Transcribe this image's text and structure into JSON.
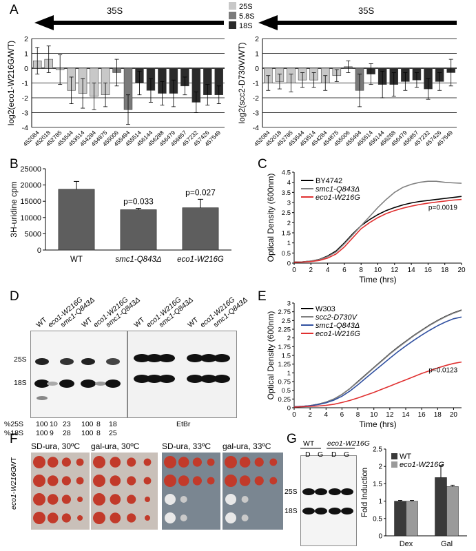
{
  "panel_letters": {
    "a": "A",
    "b": "B",
    "c": "C",
    "d": "D",
    "e": "E",
    "f": "F",
    "g": "G"
  },
  "panel_a": {
    "arrow_label_left": "35S",
    "arrow_label_right": "35S",
    "legend": [
      {
        "label": "25S",
        "color": "#c8c8c8"
      },
      {
        "label": "5.8S",
        "color": "#7a7a7a"
      },
      {
        "label": "18S",
        "color": "#2a2a2a"
      }
    ]
  },
  "panel_d": {
    "lanes": [
      "WT",
      "eco1-W216G",
      "smc1-Q843Δ",
      "WT",
      "eco1-W216G",
      "smc1-Q843Δ",
      "WT",
      "eco1-W216G",
      "smc1-Q843Δ",
      "WT",
      "eco1-W216G",
      "smc1-Q843Δ"
    ],
    "band_25s": "25S",
    "band_18s": "18S",
    "row_25s_label": "%25S",
    "row_18s_label": "%18S",
    "row_25s_values": [
      "100",
      "10",
      "23",
      "100",
      "8",
      "18"
    ],
    "row_18s_values": [
      "100",
      "9",
      "28",
      "100",
      "8",
      "25"
    ],
    "etbr_label": "EtBr"
  },
  "panel_f": {
    "titles": [
      "SD-ura, 30ºC",
      "gal-ura, 30ºC",
      "SD-ura, 33ºC",
      "gal-ura, 33ºC"
    ],
    "row_labels": [
      "WT",
      "eco1-W216G"
    ]
  },
  "panel_g": {
    "gel_group_labels": [
      "WT",
      "eco1-W216G"
    ],
    "gel_lane_labels": [
      "D",
      "G",
      "D",
      "G"
    ],
    "band_25s": "25S",
    "band_18s": "18S"
  },
  "chart_data": [
    {
      "id": "A-left",
      "type": "bar",
      "ylabel": "log2(eco1-W216G/WT)",
      "ylim": [
        -4,
        2
      ],
      "grid": true,
      "categories": [
        "452084",
        "452018",
        "452785",
        "453544",
        "453514",
        "454284",
        "454875",
        "455006",
        "455494",
        "455514",
        "456144",
        "456288",
        "456479",
        "456857",
        "457232",
        "457426",
        "457549"
      ],
      "values": [
        0.5,
        0.6,
        -0.1,
        -1.5,
        -1.7,
        -1.9,
        -1.8,
        -0.3,
        -2.8,
        -1.0,
        -1.5,
        -1.7,
        -1.7,
        -1.2,
        -2.3,
        -1.8,
        -1.8
      ],
      "errors": [
        0.9,
        0.9,
        1.0,
        0.9,
        1.0,
        0.9,
        0.8,
        0.9,
        1.0,
        0.8,
        0.8,
        0.8,
        0.9,
        0.6,
        0.7,
        0.7,
        0.6
      ],
      "groups": [
        "25S",
        "25S",
        "25S",
        "25S",
        "25S",
        "25S",
        "25S",
        "5.8S",
        "5.8S",
        "18S",
        "18S",
        "18S",
        "18S",
        "18S",
        "18S",
        "18S",
        "18S"
      ]
    },
    {
      "id": "A-right",
      "type": "bar",
      "ylabel": "log2(scc2-D730V/WT)",
      "ylim": [
        -4,
        2
      ],
      "grid": true,
      "categories": [
        "452084",
        "452018",
        "452785",
        "453544",
        "453514",
        "454284",
        "454875",
        "455006",
        "455494",
        "455514",
        "456144",
        "456288",
        "456479",
        "456857",
        "457232",
        "457426",
        "457549"
      ],
      "values": [
        -1.0,
        -0.9,
        -1.0,
        -0.8,
        -0.8,
        -1.0,
        -0.5,
        0.1,
        -1.5,
        -0.4,
        -1.1,
        -1.1,
        -0.9,
        -0.8,
        -1.4,
        -0.9,
        -0.3
      ],
      "errors": [
        0.5,
        0.5,
        0.6,
        0.5,
        0.5,
        0.5,
        0.4,
        0.4,
        1.1,
        0.7,
        0.9,
        0.8,
        0.6,
        0.5,
        0.7,
        0.6,
        0.9
      ],
      "groups": [
        "25S",
        "25S",
        "25S",
        "25S",
        "25S",
        "25S",
        "25S",
        "5.8S",
        "5.8S",
        "18S",
        "18S",
        "18S",
        "18S",
        "18S",
        "18S",
        "18S",
        "18S"
      ]
    },
    {
      "id": "B",
      "type": "bar",
      "ylabel": "3H-uridine cpm",
      "ylim": [
        0,
        25000
      ],
      "yticks": [
        0,
        5000,
        10000,
        15000,
        20000,
        25000
      ],
      "categories": [
        "WT",
        "smc1-Q843Δ",
        "eco1-W216G"
      ],
      "values": [
        18700,
        12400,
        13000
      ],
      "errors": [
        2400,
        400,
        2600
      ],
      "annotations": [
        "",
        "p=0.033",
        "p=0.027"
      ]
    },
    {
      "id": "C",
      "type": "line",
      "xlabel": "Time (hrs)",
      "ylabel": "Optical Density (600nm)",
      "xlim": [
        0,
        20
      ],
      "ylim": [
        0,
        4.5
      ],
      "xticks": [
        0,
        2,
        4,
        6,
        8,
        10,
        12,
        14,
        16,
        18,
        20
      ],
      "yticks": [
        0,
        0.5,
        1,
        1.5,
        2,
        2.5,
        3,
        3.5,
        4,
        4.5
      ],
      "annotation": "p=0.0019",
      "series": [
        {
          "name": "BY4742",
          "color": "#000000",
          "x": [
            0,
            1,
            2,
            3,
            4,
            5,
            6,
            7,
            8,
            9,
            10,
            11,
            12,
            13,
            14,
            15,
            16,
            17,
            18,
            19,
            20
          ],
          "y": [
            0.05,
            0.06,
            0.1,
            0.18,
            0.35,
            0.6,
            1.0,
            1.45,
            1.85,
            2.15,
            2.4,
            2.6,
            2.75,
            2.88,
            2.98,
            3.05,
            3.1,
            3.15,
            3.2,
            3.25,
            3.3
          ]
        },
        {
          "name": "smc1-Q843Δ",
          "color": "#808080",
          "x": [
            0,
            1,
            2,
            3,
            4,
            5,
            6,
            7,
            8,
            9,
            10,
            11,
            12,
            13,
            14,
            15,
            16,
            17,
            18,
            19,
            20
          ],
          "y": [
            0.05,
            0.06,
            0.1,
            0.17,
            0.32,
            0.55,
            0.95,
            1.4,
            1.85,
            2.3,
            2.75,
            3.15,
            3.5,
            3.75,
            3.9,
            4.0,
            4.05,
            4.05,
            4.0,
            3.97,
            3.95
          ]
        },
        {
          "name": "eco1-W216G",
          "color": "#e03030",
          "x": [
            0,
            1,
            2,
            3,
            4,
            5,
            6,
            7,
            8,
            9,
            10,
            11,
            12,
            13,
            14,
            15,
            16,
            17,
            18,
            19,
            20
          ],
          "y": [
            0.04,
            0.05,
            0.08,
            0.13,
            0.25,
            0.45,
            0.8,
            1.25,
            1.7,
            2.0,
            2.25,
            2.45,
            2.6,
            2.72,
            2.82,
            2.9,
            2.97,
            3.02,
            3.07,
            3.12,
            3.15
          ]
        }
      ]
    },
    {
      "id": "E",
      "type": "line",
      "xlabel": "Time (hrs)",
      "ylabel": "Optical Density (600nm)",
      "xlim": [
        0,
        21
      ],
      "ylim": [
        0,
        3
      ],
      "xticks": [
        0,
        2,
        4,
        6,
        8,
        10,
        12,
        14,
        16,
        18,
        20
      ],
      "yticks": [
        0,
        0.25,
        0.5,
        0.75,
        1,
        1.25,
        1.5,
        1.75,
        2,
        2.25,
        2.5,
        2.75,
        3
      ],
      "annotation": "p=0.0123",
      "series": [
        {
          "name": "W303",
          "color": "#000000",
          "x": [
            0,
            1,
            2,
            3,
            4,
            5,
            6,
            7,
            8,
            9,
            10,
            11,
            12,
            13,
            14,
            15,
            16,
            17,
            18,
            19,
            20,
            21
          ],
          "y": [
            0.03,
            0.04,
            0.06,
            0.1,
            0.16,
            0.25,
            0.38,
            0.55,
            0.75,
            0.95,
            1.15,
            1.35,
            1.55,
            1.73,
            1.9,
            2.07,
            2.22,
            2.37,
            2.5,
            2.62,
            2.72,
            2.8
          ]
        },
        {
          "name": "scc2-D730V",
          "color": "#808080",
          "x": [
            0,
            1,
            2,
            3,
            4,
            5,
            6,
            7,
            8,
            9,
            10,
            11,
            12,
            13,
            14,
            15,
            16,
            17,
            18,
            19,
            20,
            21
          ],
          "y": [
            0.03,
            0.04,
            0.06,
            0.1,
            0.16,
            0.25,
            0.38,
            0.55,
            0.74,
            0.94,
            1.14,
            1.34,
            1.54,
            1.72,
            1.89,
            2.06,
            2.21,
            2.36,
            2.49,
            2.61,
            2.71,
            2.79
          ]
        },
        {
          "name": "smc1-Q843Δ",
          "color": "#3050a0",
          "x": [
            0,
            1,
            2,
            3,
            4,
            5,
            6,
            7,
            8,
            9,
            10,
            11,
            12,
            13,
            14,
            15,
            16,
            17,
            18,
            19,
            20,
            21
          ],
          "y": [
            0.03,
            0.04,
            0.06,
            0.09,
            0.14,
            0.22,
            0.33,
            0.48,
            0.66,
            0.85,
            1.04,
            1.23,
            1.42,
            1.6,
            1.77,
            1.93,
            2.08,
            2.22,
            2.35,
            2.46,
            2.55,
            2.6
          ]
        },
        {
          "name": "eco1-W216G",
          "color": "#e03030",
          "x": [
            0,
            1,
            2,
            3,
            4,
            5,
            6,
            7,
            8,
            9,
            10,
            11,
            12,
            13,
            14,
            15,
            16,
            17,
            18,
            19,
            20,
            21
          ],
          "y": [
            0.02,
            0.03,
            0.04,
            0.05,
            0.07,
            0.1,
            0.15,
            0.21,
            0.28,
            0.36,
            0.44,
            0.53,
            0.62,
            0.71,
            0.8,
            0.89,
            0.98,
            1.06,
            1.14,
            1.21,
            1.27,
            1.31
          ]
        }
      ]
    },
    {
      "id": "G",
      "type": "bar",
      "ylabel": "Fold Induction",
      "ylim": [
        0,
        2.5
      ],
      "yticks": [
        0,
        0.5,
        1,
        1.5,
        2,
        2.5
      ],
      "categories": [
        "Dex",
        "Gal"
      ],
      "series": [
        {
          "name": "WT",
          "color": "#3a3a3a",
          "values": [
            1.0,
            1.68
          ],
          "errors": [
            0.02,
            0.35
          ]
        },
        {
          "name": "eco1-W216G",
          "color": "#9a9a9a",
          "values": [
            1.0,
            1.42
          ],
          "errors": [
            0.02,
            0.04
          ]
        }
      ]
    }
  ]
}
